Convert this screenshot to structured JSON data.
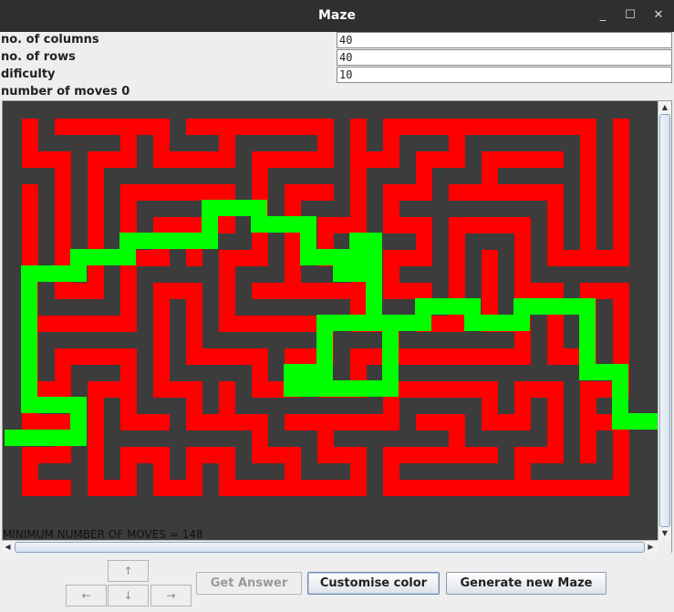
{
  "window": {
    "title": "Maze",
    "minimize_glyph": "_",
    "maximize_glyph": "☐",
    "close_glyph": "✕"
  },
  "settings": {
    "columns_label": "no. of columns",
    "columns_value": "40",
    "rows_label": "no. of rows",
    "rows_value": "40",
    "difficulty_label": "dificulty",
    "difficulty_value": "10"
  },
  "status": {
    "moves_text": "number of moves 0",
    "min_moves_text": "MINIMUM NUMBER OF MOVES = 148"
  },
  "colors": {
    "wall": "#3c3c3c",
    "path": "#ff0000",
    "solution": "#00ff00",
    "grid_line": "#4a4a4a"
  },
  "buttons": {
    "up": "↑",
    "left": "←",
    "down": "↓",
    "right": "→",
    "get_answer": "Get Answer",
    "customise_color": "Customise color",
    "generate_new": "Generate new Maze"
  }
}
